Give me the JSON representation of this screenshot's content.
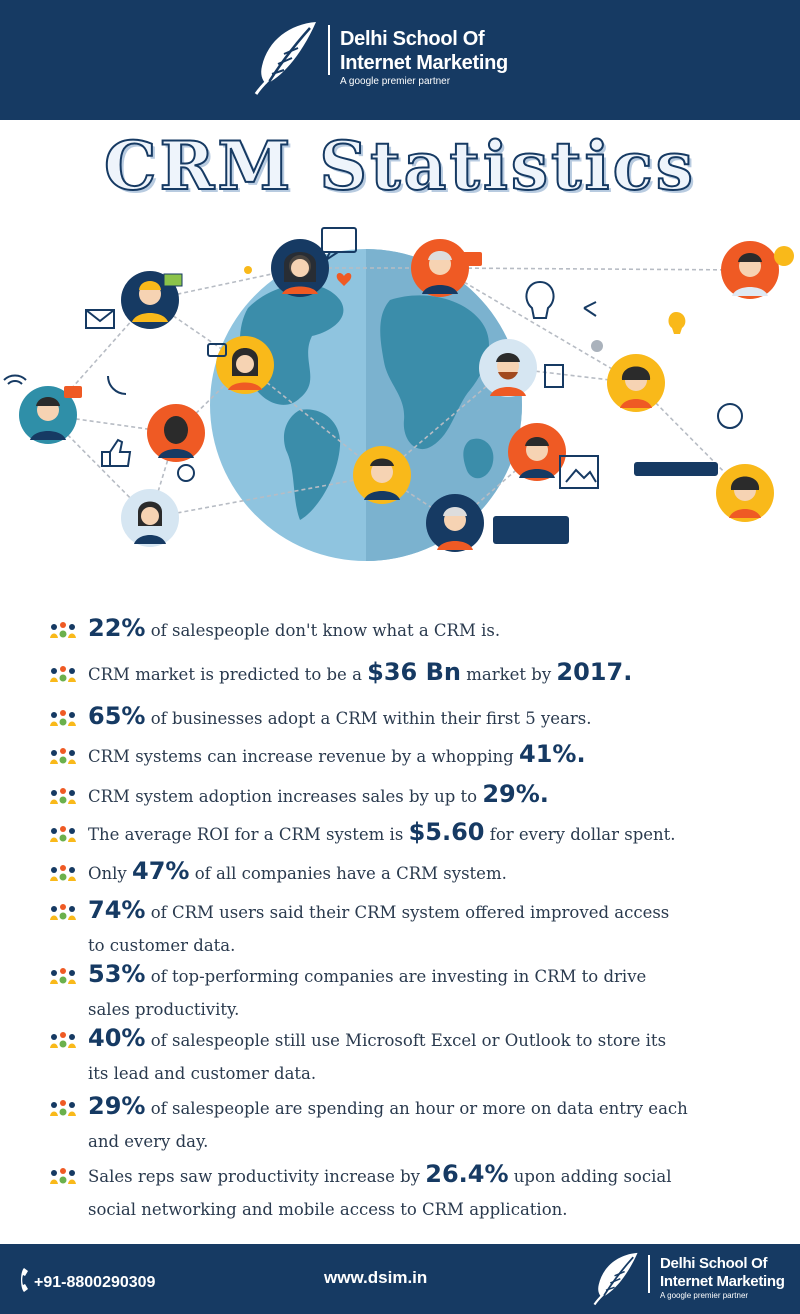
{
  "header": {
    "brand_line1": "Delhi School Of",
    "brand_line2": "Internet Marketing",
    "tagline": "A google premier partner"
  },
  "title": "CRM Statistics",
  "colors": {
    "navy": "#163a63",
    "orange": "#ef5a24",
    "yellow": "#f9b91a",
    "globe": "#8fc4df"
  },
  "stats": [
    {
      "highlight": "22%",
      "rest": " of salespeople don't know what a CRM is."
    },
    {
      "pre": "CRM market is predicted to be a ",
      "highlight": "$36 Bn",
      "mid": " market by ",
      "highlight2": "2017."
    },
    {
      "highlight": "65%",
      "rest": " of businesses adopt a CRM within their first 5 years."
    },
    {
      "pre": "CRM systems can increase revenue by a whopping ",
      "highlight": "41%."
    },
    {
      "pre": "CRM system adoption increases sales by up to ",
      "highlight": "29%."
    },
    {
      "pre": "The average ROI for a CRM system is ",
      "highlight": "$5.60",
      "rest": " for every dollar spent."
    },
    {
      "pre": "Only ",
      "highlight": "47%",
      "rest": "  of all companies have a CRM system."
    },
    {
      "highlight": "74%",
      "rest": " of CRM users said their CRM system offered improved access",
      "line2": "to customer data."
    },
    {
      "highlight": "53%",
      "rest": " of top-performing companies are investing in CRM to drive",
      "line2": "sales productivity."
    },
    {
      "highlight": "40%",
      "rest": " of salespeople still use Microsoft Excel or Outlook to store its",
      "line2": "its lead and customer data."
    },
    {
      "highlight": "29%",
      "rest": " of salespeople are spending an hour or more on data entry each",
      "line2": "and every day."
    },
    {
      "pre": "Sales reps saw productivity increase by ",
      "highlight": "26.4%",
      "rest": " upon adding social",
      "line2": "social networking and mobile access to CRM application."
    }
  ],
  "footer": {
    "phone": "+91-8800290309",
    "website": "www.dsim.in",
    "brand_line1": "Delhi School Of",
    "brand_line2": "Internet Marketing",
    "tagline": "A google premier partner"
  }
}
